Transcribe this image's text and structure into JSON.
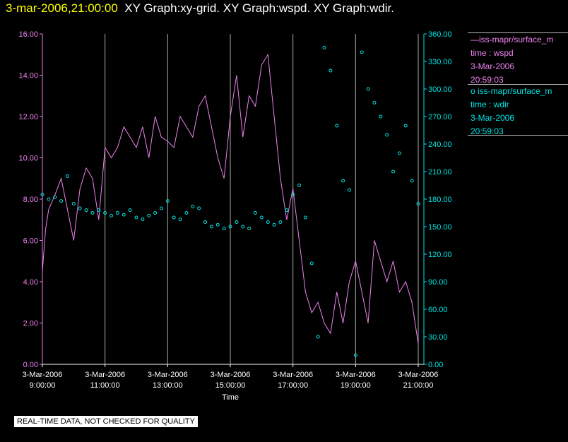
{
  "header": {
    "timestamp": "3-mar-2006,21:00:00",
    "titles": "XY Graph:xy-grid.  XY Graph:wspd.  XY Graph:wdir."
  },
  "legend": {
    "wspd": {
      "name": "iss-mapr/surface_m",
      "line1": "time : wspd",
      "line2": "3-Mar-2006",
      "line3": "20:59:03",
      "color": "#ee82ee"
    },
    "wdir": {
      "name": "iss-mapr/surface_m",
      "line1": "time : wdir",
      "line2": "3-Mar-2006",
      "line3": "20:59:03",
      "color": "#00e5e5"
    }
  },
  "footer": {
    "text": "REAL-TIME DATA, NOT CHECKED FOR QUALITY"
  },
  "chart_data": {
    "type": "line",
    "xlabel": "Time",
    "x_ticks": [
      {
        "hour": 9,
        "date": "3-Mar-2006",
        "time": "9:00:00"
      },
      {
        "hour": 11,
        "date": "3-Mar-2006",
        "time": "11:00:00"
      },
      {
        "hour": 13,
        "date": "3-Mar-2006",
        "time": "13:00:00"
      },
      {
        "hour": 15,
        "date": "3-Mar-2006",
        "time": "15:00:00"
      },
      {
        "hour": 17,
        "date": "3-Mar-2006",
        "time": "17:00:00"
      },
      {
        "hour": 19,
        "date": "3-Mar-2006",
        "time": "19:00:00"
      },
      {
        "hour": 21,
        "date": "3-Mar-2006",
        "time": "21:00:00"
      }
    ],
    "xlim": [
      9,
      21
    ],
    "left_axis": {
      "ylim": [
        0,
        16
      ],
      "ticks": [
        "0.00",
        "2.00",
        "4.00",
        "6.00",
        "8.00",
        "10.00",
        "12.00",
        "14.00",
        "16.00"
      ],
      "color": "#ee82ee"
    },
    "right_axis": {
      "ylim": [
        0,
        360
      ],
      "ticks": [
        "0.00",
        "30.00",
        "60.00",
        "90.00",
        "120.00",
        "150.00",
        "180.00",
        "210.00",
        "240.00",
        "270.00",
        "300.00",
        "330.00",
        "360.00"
      ],
      "color": "#00e5e5"
    },
    "grid": "vertical",
    "series": [
      {
        "name": "wspd",
        "style": "line",
        "axis": "left",
        "x": [
          9.0,
          9.1,
          9.2,
          9.4,
          9.6,
          9.8,
          10.0,
          10.2,
          10.4,
          10.6,
          10.8,
          11.0,
          11.2,
          11.4,
          11.6,
          11.8,
          12.0,
          12.2,
          12.4,
          12.6,
          12.8,
          13.0,
          13.2,
          13.4,
          13.6,
          13.8,
          14.0,
          14.2,
          14.4,
          14.6,
          14.8,
          15.0,
          15.2,
          15.4,
          15.6,
          15.8,
          16.0,
          16.2,
          16.4,
          16.6,
          16.8,
          17.0,
          17.2,
          17.4,
          17.6,
          17.8,
          18.0,
          18.2,
          18.4,
          18.6,
          18.8,
          19.0,
          19.2,
          19.4,
          19.6,
          19.8,
          20.0,
          20.2,
          20.4,
          20.6,
          20.8,
          21.0
        ],
        "y": [
          4.5,
          6.5,
          7.5,
          8.2,
          9.0,
          7.5,
          6.0,
          8.5,
          9.5,
          9.0,
          7.0,
          10.5,
          10.0,
          10.5,
          11.5,
          11.0,
          10.5,
          11.5,
          10.0,
          12.0,
          11.0,
          10.8,
          10.5,
          12.0,
          11.5,
          11.0,
          12.5,
          13.0,
          11.5,
          10.0,
          9.0,
          12.0,
          14.0,
          11.0,
          13.0,
          12.5,
          14.5,
          15.0,
          12.0,
          9.0,
          7.0,
          8.5,
          6.0,
          3.5,
          2.5,
          3.0,
          2.0,
          1.5,
          3.5,
          2.0,
          4.0,
          5.0,
          3.5,
          2.0,
          6.0,
          5.0,
          4.0,
          5.0,
          3.5,
          4.0,
          3.0,
          1.0
        ]
      },
      {
        "name": "wdir",
        "style": "circles",
        "axis": "right",
        "x": [
          9.0,
          9.2,
          9.4,
          9.6,
          9.8,
          10.0,
          10.2,
          10.4,
          10.6,
          10.8,
          11.0,
          11.2,
          11.4,
          11.6,
          11.8,
          12.0,
          12.2,
          12.4,
          12.6,
          12.8,
          13.0,
          13.2,
          13.4,
          13.6,
          13.8,
          14.0,
          14.2,
          14.4,
          14.6,
          14.8,
          15.0,
          15.2,
          15.4,
          15.6,
          15.8,
          16.0,
          16.2,
          16.4,
          16.6,
          16.8,
          17.0,
          17.2,
          17.4,
          17.6,
          17.8,
          18.0,
          18.2,
          18.4,
          18.6,
          18.8,
          19.0,
          19.2,
          19.4,
          19.6,
          19.8,
          20.0,
          20.2,
          20.4,
          20.6,
          20.8,
          21.0
        ],
        "y": [
          185,
          180,
          182,
          178,
          205,
          175,
          170,
          168,
          165,
          168,
          165,
          162,
          165,
          163,
          168,
          160,
          158,
          162,
          165,
          170,
          178,
          160,
          158,
          165,
          172,
          170,
          155,
          150,
          152,
          148,
          150,
          155,
          150,
          148,
          165,
          160,
          155,
          152,
          155,
          168,
          185,
          195,
          160,
          110,
          30,
          345,
          320,
          260,
          200,
          190,
          10,
          340,
          300,
          285,
          270,
          250,
          210,
          230,
          260,
          200,
          175
        ]
      }
    ]
  }
}
